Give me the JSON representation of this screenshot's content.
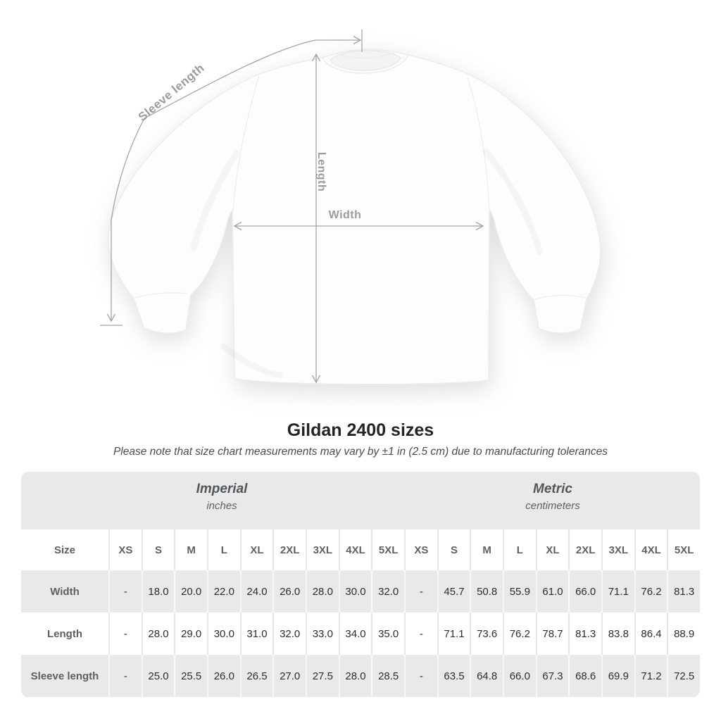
{
  "diagram": {
    "sleeve_length_label": "Sleeve length",
    "length_label": "Length",
    "width_label": "Width"
  },
  "header": {
    "title": "Gildan 2400 sizes",
    "subtitle": "Please note that size chart measurements may vary by ±1 in (2.5 cm) due to manufacturing tolerances"
  },
  "table": {
    "size_column_label": "Size",
    "unit_groups": [
      {
        "label": "Imperial",
        "sublabel": "inches"
      },
      {
        "label": "Metric",
        "sublabel": "centimeters"
      }
    ],
    "sizes": [
      "XS",
      "S",
      "M",
      "L",
      "XL",
      "2XL",
      "3XL",
      "4XL",
      "5XL"
    ],
    "rows": [
      {
        "label": "Width",
        "imperial": [
          "-",
          "18.0",
          "20.0",
          "22.0",
          "24.0",
          "26.0",
          "28.0",
          "30.0",
          "32.0"
        ],
        "metric": [
          "-",
          "45.7",
          "50.8",
          "55.9",
          "61.0",
          "66.0",
          "71.1",
          "76.2",
          "81.3"
        ]
      },
      {
        "label": "Length",
        "imperial": [
          "-",
          "28.0",
          "29.0",
          "30.0",
          "31.0",
          "32.0",
          "33.0",
          "34.0",
          "35.0"
        ],
        "metric": [
          "-",
          "71.1",
          "73.6",
          "76.2",
          "78.7",
          "81.3",
          "83.8",
          "86.4",
          "88.9"
        ]
      },
      {
        "label": "Sleeve length",
        "imperial": [
          "-",
          "25.0",
          "25.5",
          "26.0",
          "26.5",
          "27.0",
          "27.5",
          "28.0",
          "28.5"
        ],
        "metric": [
          "-",
          "63.5",
          "64.8",
          "66.0",
          "67.3",
          "68.6",
          "69.9",
          "71.2",
          "72.5"
        ]
      }
    ]
  },
  "colors": {
    "page_bg": "#ffffff",
    "table_band_gray": "#e9e9ea",
    "row_white": "#ffffff",
    "annotation_gray": "#9aa0a3",
    "title_text": "#212325",
    "subtitle_text": "#484b4e",
    "header_text": "#54585c",
    "value_text": "#2a2d2f",
    "shirt_fill": "#fdfdfe"
  }
}
